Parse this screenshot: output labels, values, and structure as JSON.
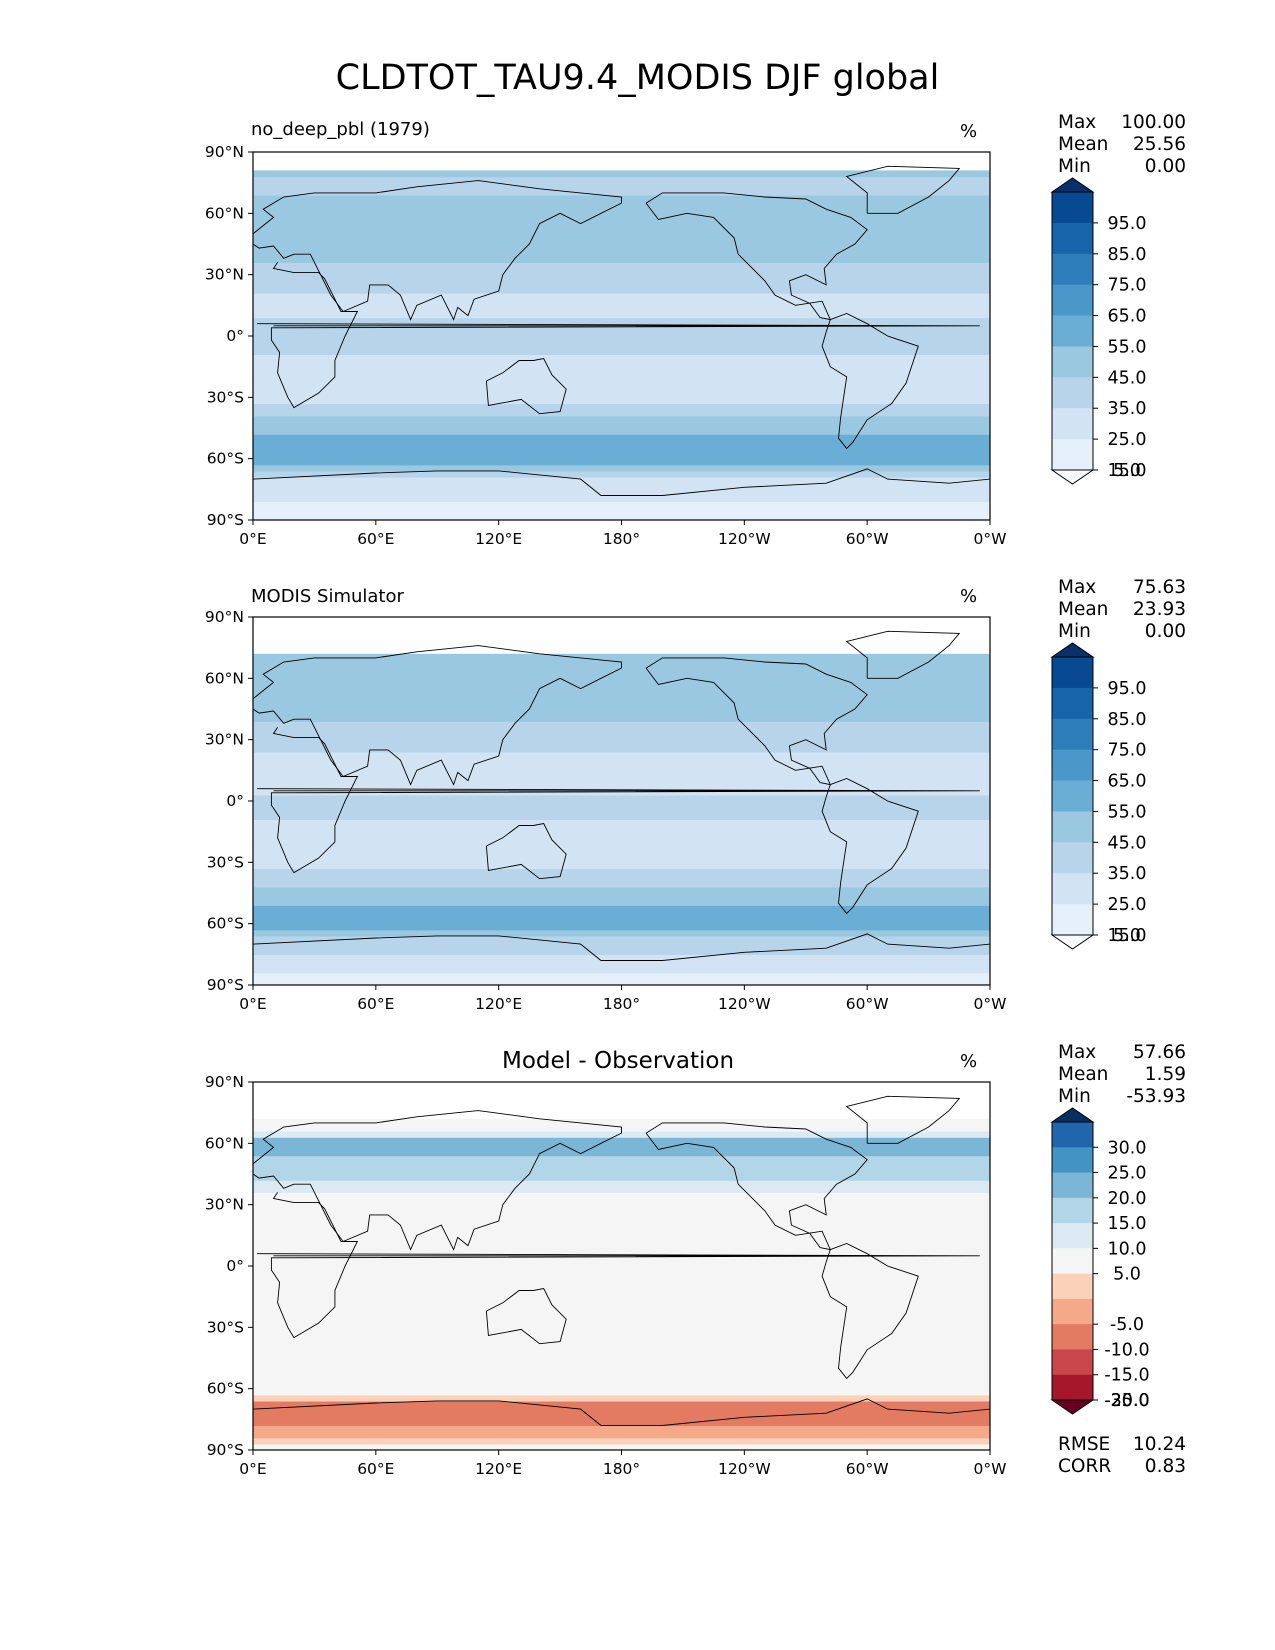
{
  "figure_title": "CLDTOT_TAU9.4_MODIS DJF global",
  "colors": {
    "seq": [
      "#f7fbff",
      "#e6f0fa",
      "#d2e3f3",
      "#b7d4ea",
      "#9ac8e0",
      "#6aaed6",
      "#4a98c9",
      "#2e7ebc",
      "#1764ab",
      "#084a91",
      "#08306b"
    ],
    "div": [
      "#67001f",
      "#a6172d",
      "#c9474a",
      "#e27b62",
      "#f4aa88",
      "#fbd1b9",
      "#f5f5f5",
      "#dbeaf2",
      "#b2d5e7",
      "#7bb6d6",
      "#4393c3",
      "#2166ac",
      "#053061"
    ],
    "coast": "#000000"
  },
  "chart_data": [
    {
      "type": "heatmap",
      "title": "no_deep_pbl (1979)",
      "units": "%",
      "x_ticks": [
        "0°E",
        "60°E",
        "120°E",
        "180°",
        "120°W",
        "60°W",
        "0°W"
      ],
      "y_ticks": [
        "90°N",
        "60°N",
        "30°N",
        "0°",
        "30°S",
        "60°S",
        "90°S"
      ],
      "xlim": [
        0,
        360
      ],
      "ylim": [
        -90,
        90
      ],
      "stats": {
        "Max": "100.00",
        "Mean": "25.56",
        "Min": "0.00"
      },
      "colorbar": {
        "levels": [
          "95.0",
          "85.0",
          "75.0",
          "65.0",
          "55.0",
          "45.0",
          "35.0",
          "25.0",
          "15.0",
          "5.0"
        ],
        "extend": "both",
        "palette": "seq"
      },
      "zonal_mean_profile": {
        "lat": [
          -90,
          -70,
          -60,
          -50,
          -40,
          -30,
          -15,
          0,
          15,
          30,
          45,
          60,
          75,
          82
        ],
        "value": [
          5,
          25,
          50,
          48,
          35,
          20,
          22,
          28,
          22,
          30,
          45,
          42,
          30,
          40
        ]
      }
    },
    {
      "type": "heatmap",
      "title": "MODIS Simulator",
      "units": "%",
      "x_ticks": [
        "0°E",
        "60°E",
        "120°E",
        "180°",
        "120°W",
        "60°W",
        "0°W"
      ],
      "y_ticks": [
        "90°N",
        "60°N",
        "30°N",
        "0°",
        "30°S",
        "60°S",
        "90°S"
      ],
      "xlim": [
        0,
        360
      ],
      "ylim": [
        -90,
        90
      ],
      "stats": {
        "Max": "75.63",
        "Mean": "23.93",
        "Min": "0.00"
      },
      "colorbar": {
        "levels": [
          "95.0",
          "85.0",
          "75.0",
          "65.0",
          "55.0",
          "45.0",
          "35.0",
          "25.0",
          "15.0",
          "5.0"
        ],
        "extend": "both",
        "palette": "seq"
      },
      "zonal_mean_profile": {
        "lat": [
          -90,
          -70,
          -60,
          -50,
          -40,
          -30,
          -15,
          0,
          15,
          30,
          45,
          60,
          72
        ],
        "value": [
          8,
          30,
          48,
          45,
          33,
          22,
          24,
          26,
          20,
          28,
          38,
          40,
          35
        ]
      }
    },
    {
      "type": "heatmap",
      "title": "Model - Observation",
      "units": "%",
      "x_ticks": [
        "0°E",
        "60°E",
        "120°E",
        "180°",
        "120°W",
        "60°W",
        "0°W"
      ],
      "y_ticks": [
        "90°N",
        "60°N",
        "30°N",
        "0°",
        "30°S",
        "60°S",
        "90°S"
      ],
      "xlim": [
        0,
        360
      ],
      "ylim": [
        -90,
        90
      ],
      "stats": {
        "Max": "57.66",
        "Mean": "1.59",
        "Min": "-53.93"
      },
      "colorbar": {
        "levels": [
          "30.0",
          "25.0",
          "20.0",
          "15.0",
          "10.0",
          "5.0",
          "-5.0",
          "-10.0",
          "-15.0",
          "-20.0",
          "-25.0",
          "-30.0"
        ],
        "extend": "both",
        "palette": "div"
      },
      "metrics": {
        "RMSE": "10.24",
        "CORR": "0.83"
      },
      "zonal_mean_profile": {
        "lat": [
          -90,
          -75,
          -68,
          -60,
          -45,
          -30,
          -15,
          0,
          15,
          30,
          45,
          60,
          72
        ],
        "value": [
          -2,
          -20,
          -18,
          2,
          5,
          0,
          -2,
          0,
          1,
          2,
          12,
          18,
          -5
        ]
      }
    }
  ]
}
